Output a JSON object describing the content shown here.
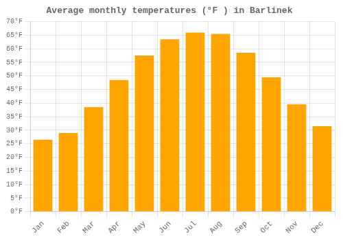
{
  "chart_data": {
    "type": "bar",
    "title": "Average monthly temperatures (°F ) in Barlinek",
    "categories": [
      "Jan",
      "Feb",
      "Mar",
      "Apr",
      "May",
      "Jun",
      "Jul",
      "Aug",
      "Sep",
      "Oct",
      "Nov",
      "Dec"
    ],
    "values": [
      26.5,
      29.0,
      38.5,
      48.5,
      57.5,
      63.5,
      66.0,
      65.5,
      58.5,
      49.5,
      39.5,
      31.5
    ],
    "color": "#FFA500",
    "ylim": [
      0,
      70
    ],
    "yticks": [
      {
        "value": 0,
        "label": "0°F"
      },
      {
        "value": 5,
        "label": "5°F"
      },
      {
        "value": 10,
        "label": "10°F"
      },
      {
        "value": 15,
        "label": "15°F"
      },
      {
        "value": 20,
        "label": "20°F"
      },
      {
        "value": 25,
        "label": "25°F"
      },
      {
        "value": 30,
        "label": "30°F"
      },
      {
        "value": 35,
        "label": "35°F"
      },
      {
        "value": 40,
        "label": "40°F"
      },
      {
        "value": 45,
        "label": "45°F"
      },
      {
        "value": 50,
        "label": "50°F"
      },
      {
        "value": 55,
        "label": "55°F"
      },
      {
        "value": 60,
        "label": "60°F"
      },
      {
        "value": 65,
        "label": "65°F"
      },
      {
        "value": 70,
        "label": "70°F"
      }
    ],
    "grid": true
  }
}
